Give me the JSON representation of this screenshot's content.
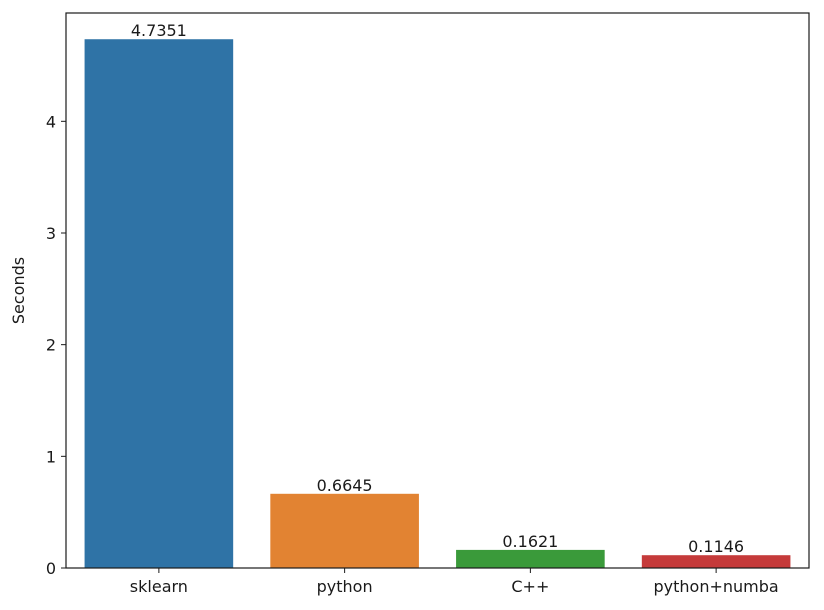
{
  "chart_data": {
    "type": "bar",
    "categories": [
      "sklearn",
      "python",
      "C++",
      "python+numba"
    ],
    "values": [
      4.7351,
      0.6645,
      0.1621,
      0.1146
    ],
    "data_labels": [
      "4.7351",
      "0.6645",
      "0.1621",
      "0.1146"
    ],
    "colors": [
      "#2f73a6",
      "#e28332",
      "#3a9a3a",
      "#c53a3a"
    ],
    "title": "",
    "xlabel": "",
    "ylabel": "Seconds",
    "ylim": [
      0,
      4.97
    ],
    "yticks": [
      0,
      1,
      2,
      3,
      4
    ],
    "grid": false,
    "legend": "none"
  }
}
